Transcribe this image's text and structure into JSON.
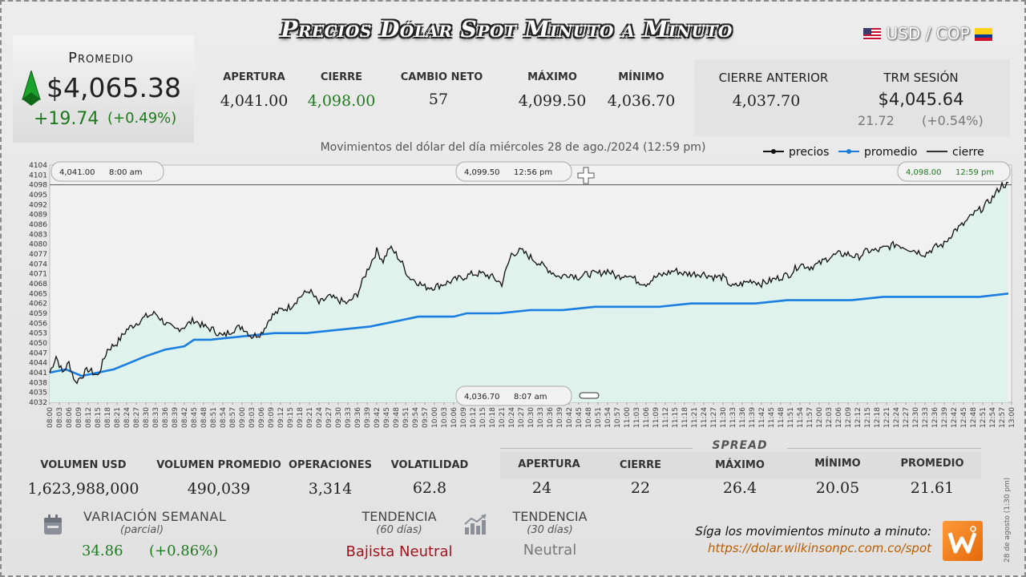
{
  "header": {
    "title": "Precios Dólar Spot Minuto a Minuto",
    "pair": "USD / COP"
  },
  "promedio": {
    "label": "Promedio",
    "value": "$4,065.38",
    "change": "+19.74",
    "change_pct": "(+0.49%)"
  },
  "stats": [
    {
      "label": "APERTURA",
      "value": "4,041.00"
    },
    {
      "label": "CIERRE",
      "value": "4,098.00"
    },
    {
      "label": "CAMBIO NETO",
      "value": "57"
    },
    {
      "label": "MÁXIMO",
      "value": "4,099.50"
    },
    {
      "label": "MÍNIMO",
      "value": "4,036.70"
    }
  ],
  "cierre_anterior": {
    "label": "CIERRE ANTERIOR",
    "value": "4,037.70"
  },
  "trm": {
    "label": "TRM SESIÓN",
    "value": "$4,045.64",
    "change": "21.72",
    "change_pct": "(+0.54%)"
  },
  "chart_data": {
    "type": "line",
    "title": "Movimientos del dólar del día miércoles 28 de ago./2024 (12:59 pm)",
    "legend": [
      "precios",
      "promedio",
      "cierre"
    ],
    "legend_position": "top-right",
    "ylim": [
      4032,
      4104
    ],
    "y_ticks": [
      4032,
      4035,
      4038,
      4041,
      4044,
      4047,
      4050,
      4053,
      4056,
      4059,
      4062,
      4065,
      4068,
      4071,
      4074,
      4077,
      4080,
      4083,
      4086,
      4089,
      4092,
      4095,
      4098,
      4101,
      4104
    ],
    "x_ticks": [
      "08:00",
      "08:03",
      "08:06",
      "08:09",
      "08:12",
      "08:15",
      "08:18",
      "08:21",
      "08:24",
      "08:27",
      "08:30",
      "08:33",
      "08:36",
      "08:39",
      "08:42",
      "08:45",
      "08:48",
      "08:51",
      "08:54",
      "08:57",
      "09:00",
      "09:03",
      "09:06",
      "09:09",
      "09:12",
      "09:15",
      "09:18",
      "09:21",
      "09:24",
      "09:27",
      "09:30",
      "09:33",
      "09:36",
      "09:39",
      "09:42",
      "09:45",
      "09:48",
      "09:51",
      "09:54",
      "09:57",
      "10:00",
      "10:03",
      "10:06",
      "10:09",
      "10:12",
      "10:15",
      "10:18",
      "10:21",
      "10:24",
      "10:27",
      "10:30",
      "10:33",
      "10:36",
      "10:39",
      "10:42",
      "10:45",
      "10:48",
      "10:51",
      "10:54",
      "10:57",
      "11:00",
      "11:03",
      "11:06",
      "11:09",
      "11:12",
      "11:15",
      "11:18",
      "11:21",
      "11:24",
      "11:27",
      "11:30",
      "11:33",
      "11:36",
      "11:39",
      "11:42",
      "11:45",
      "11:48",
      "11:51",
      "11:54",
      "11:57",
      "12:00",
      "12:03",
      "12:06",
      "12:09",
      "12:12",
      "12:15",
      "12:18",
      "12:21",
      "12:24",
      "12:27",
      "12:30",
      "12:33",
      "12:36",
      "12:39",
      "12:42",
      "12:45",
      "12:48",
      "12:51",
      "12:54",
      "12:57",
      "13:00"
    ],
    "cierre_value": 4098,
    "series": [
      {
        "name": "precios",
        "x": [
          0,
          2,
          4,
          6,
          8,
          10,
          12,
          15,
          18,
          21,
          24,
          27,
          30,
          33,
          36,
          39,
          42,
          45,
          48,
          51,
          54,
          57,
          60,
          63,
          66,
          69,
          72,
          75,
          78,
          81,
          84,
          87,
          90,
          93,
          96,
          99,
          102,
          104,
          106,
          108,
          110,
          112,
          114,
          117,
          120,
          123,
          126,
          129,
          132,
          135,
          138,
          141,
          144,
          147,
          150,
          153,
          156,
          159,
          162,
          165,
          168,
          171,
          174,
          177,
          180,
          183,
          186,
          189,
          192,
          195,
          198,
          201,
          204,
          207,
          210,
          213,
          216,
          219,
          222,
          225,
          228,
          231,
          234,
          237,
          240,
          243,
          246,
          249,
          252,
          255,
          258,
          261,
          264,
          267,
          270,
          273,
          276,
          279,
          282,
          285,
          288,
          291,
          294,
          297,
          299
        ],
        "y": [
          4041,
          4046,
          4041,
          4044,
          4038,
          4040,
          4042,
          4040,
          4048,
          4050,
          4054,
          4056,
          4058,
          4059,
          4056,
          4054,
          4055,
          4057,
          4055,
          4054,
          4052,
          4054,
          4055,
          4052,
          4053,
          4058,
          4060,
          4061,
          4064,
          4066,
          4062,
          4064,
          4063,
          4062,
          4065,
          4072,
          4078,
          4075,
          4079,
          4077,
          4074,
          4070,
          4069,
          4067,
          4067,
          4068,
          4069,
          4070,
          4071,
          4071,
          4070,
          4068,
          4077,
          4078,
          4076,
          4074,
          4072,
          4070,
          4071,
          4070,
          4071,
          4071,
          4072,
          4070,
          4071,
          4069,
          4068,
          4070,
          4071,
          4072,
          4071,
          4071,
          4071,
          4070,
          4070,
          4067,
          4068,
          4069,
          4068,
          4069,
          4070,
          4071,
          4074,
          4073,
          4074,
          4076,
          4077,
          4077,
          4076,
          4078,
          4078,
          4079,
          4080,
          4079,
          4078,
          4077,
          4079,
          4080,
          4084,
          4086,
          4089,
          4091,
          4094,
          4098,
          4098
        ]
      },
      {
        "name": "promedio",
        "x": [
          0,
          5,
          10,
          15,
          20,
          25,
          30,
          36,
          42,
          45,
          50,
          60,
          70,
          80,
          90,
          100,
          105,
          110,
          115,
          120,
          126,
          130,
          135,
          140,
          150,
          160,
          170,
          180,
          190,
          200,
          210,
          220,
          230,
          240,
          250,
          260,
          270,
          280,
          290,
          299
        ],
        "y": [
          4041,
          4042,
          4040,
          4041,
          4042,
          4044,
          4046,
          4048,
          4049,
          4051,
          4051,
          4052,
          4053,
          4053,
          4054,
          4055,
          4056,
          4057,
          4058,
          4058,
          4058,
          4059,
          4059,
          4059,
          4060,
          4060,
          4061,
          4061,
          4061,
          4062,
          4062,
          4062,
          4063,
          4063,
          4063,
          4064,
          4064,
          4064,
          4064,
          4065
        ]
      }
    ],
    "annotations": {
      "apertura": {
        "price": "4,041.00",
        "time": "8:00 am"
      },
      "maximo": {
        "price": "4,099.50",
        "time": "12:56 pm"
      },
      "minimo": {
        "price": "4,036.70",
        "time": "8:07 am"
      },
      "cierre": {
        "price": "4,098.00",
        "time": "12:59 pm"
      }
    }
  },
  "volume": [
    {
      "label": "VOLUMEN USD",
      "value": "1,623,988,000"
    },
    {
      "label": "VOLUMEN PROMEDIO",
      "value": "490,039"
    },
    {
      "label": "OPERACIONES",
      "value": "3,314"
    },
    {
      "label": "VOLATILIDAD",
      "value": "62.8"
    }
  ],
  "spread": {
    "title": "SPREAD",
    "items": [
      {
        "label": "APERTURA",
        "value": "24"
      },
      {
        "label": "CIERRE",
        "value": "22"
      },
      {
        "label": "MÁXIMO",
        "value": "26.4"
      },
      {
        "label": "MÍNIMO",
        "value": "20.05"
      },
      {
        "label": "PROMEDIO",
        "value": "21.61"
      }
    ]
  },
  "variacion": {
    "label": "VARIACIÓN SEMANAL",
    "sub": "(parcial)",
    "value": "34.86",
    "pct": "(+0.86%)"
  },
  "tendencia60": {
    "label": "TENDENCIA",
    "sub": "(60 días)",
    "value": "Bajista Neutral"
  },
  "tendencia30": {
    "label": "TENDENCIA",
    "sub": "(30 días)",
    "value": "Neutral"
  },
  "follow": {
    "text": "Síga los movimientos minuto a minuto:",
    "url": "https://dolar.wilkinsonpc.com.co/spot"
  },
  "side_note": "28 de agosto (1:30 pm)",
  "colors": {
    "precios": "#111111",
    "promedio": "#1a7ee0",
    "area": "#dff2ec",
    "up": "#1e7a1e"
  }
}
